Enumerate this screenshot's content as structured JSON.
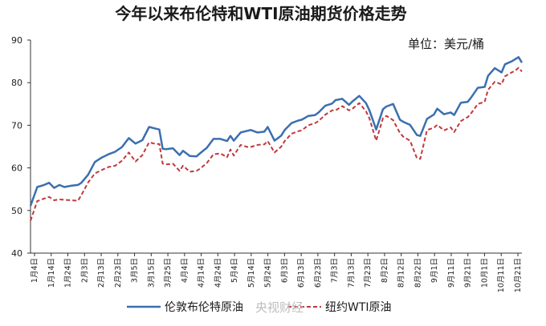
{
  "chart_data": {
    "type": "line",
    "title": "今年以来布伦特和WTI原油期货价格走势",
    "unit_label": "单位：美元/桶",
    "ylim": [
      40,
      90
    ],
    "yticks": [
      40,
      50,
      60,
      70,
      80,
      90
    ],
    "x_tick_labels": [
      "1月4日",
      "1月14日",
      "1月24日",
      "2月3日",
      "2月13日",
      "2月23日",
      "3月5日",
      "3月15日",
      "3月25日",
      "4月4日",
      "4月14日",
      "4月24日",
      "5月4日",
      "5月14日",
      "5月24日",
      "6月3日",
      "6月13日",
      "6月23日",
      "7月3日",
      "7月13日",
      "7月23日",
      "8月2日",
      "8月12日",
      "8月22日",
      "9月1日",
      "9月11日",
      "9月21日",
      "10月1日",
      "10月11日",
      "10月21日"
    ],
    "x_range": [
      0,
      290
    ],
    "colors": {
      "brent": "#3b6fb0",
      "wti": "#c0393e"
    },
    "series": [
      {
        "name": "伦敦布伦特原油",
        "style": "solid",
        "color": "#3b6fb0",
        "x": [
          0,
          4,
          8,
          11,
          14,
          17,
          20,
          24,
          28,
          30,
          34,
          38,
          42,
          46,
          50,
          54,
          58,
          62,
          66,
          70,
          74,
          76,
          78,
          80,
          84,
          88,
          90,
          94,
          98,
          100,
          104,
          108,
          112,
          116,
          118,
          120,
          124,
          128,
          130,
          134,
          138,
          140,
          144,
          148,
          150,
          154,
          158,
          160,
          164,
          168,
          170,
          174,
          178,
          180,
          184,
          188,
          190,
          194,
          198,
          200,
          204,
          208,
          210,
          214,
          218,
          220,
          224,
          228,
          230,
          234,
          238,
          240,
          244,
          248,
          250,
          254,
          258,
          260,
          264,
          268,
          270,
          274,
          278,
          280,
          284,
          286,
          288,
          290
        ],
        "values": [
          51.1,
          55.5,
          56.0,
          56.5,
          55.3,
          56.0,
          55.5,
          55.8,
          56.0,
          56.5,
          58.4,
          61.4,
          62.4,
          63.2,
          63.8,
          64.9,
          67.0,
          65.7,
          66.5,
          69.6,
          69.2,
          69.0,
          64.5,
          64.4,
          64.6,
          63.0,
          64.0,
          62.8,
          62.7,
          63.4,
          64.7,
          66.8,
          66.8,
          66.3,
          67.5,
          66.4,
          68.3,
          68.7,
          68.9,
          68.3,
          68.5,
          69.6,
          66.4,
          67.6,
          68.9,
          70.5,
          71.1,
          71.3,
          72.2,
          72.4,
          73.0,
          74.6,
          75.1,
          75.9,
          76.2,
          74.8,
          75.6,
          76.9,
          75.2,
          73.5,
          69.0,
          73.8,
          74.4,
          75.0,
          71.3,
          70.8,
          70.1,
          67.7,
          67.5,
          71.5,
          72.5,
          73.9,
          72.6,
          73.0,
          72.4,
          75.3,
          75.5,
          76.5,
          78.8,
          79.0,
          81.6,
          83.4,
          82.4,
          84.3,
          85.0,
          85.5,
          86.0,
          84.7
        ]
      },
      {
        "name": "纽约WTI原油",
        "style": "dashed",
        "color": "#c0393e",
        "x": [
          0,
          4,
          8,
          11,
          14,
          17,
          20,
          24,
          28,
          30,
          34,
          38,
          42,
          46,
          50,
          54,
          58,
          62,
          66,
          70,
          74,
          76,
          78,
          80,
          84,
          88,
          90,
          94,
          98,
          100,
          104,
          108,
          112,
          116,
          118,
          120,
          124,
          128,
          130,
          134,
          138,
          140,
          144,
          148,
          150,
          154,
          158,
          160,
          164,
          168,
          170,
          174,
          178,
          180,
          184,
          188,
          190,
          194,
          198,
          200,
          204,
          208,
          210,
          214,
          218,
          220,
          224,
          228,
          230,
          234,
          238,
          240,
          244,
          248,
          250,
          254,
          258,
          260,
          264,
          268,
          270,
          274,
          278,
          280,
          284,
          286,
          288,
          290
        ],
        "values": [
          47.6,
          52.2,
          52.8,
          53.2,
          52.4,
          52.6,
          52.5,
          52.4,
          52.3,
          53.6,
          56.6,
          58.7,
          59.5,
          60.2,
          60.5,
          61.7,
          63.6,
          61.5,
          63.0,
          66.0,
          65.6,
          65.6,
          61.0,
          60.8,
          61.0,
          59.3,
          60.5,
          59.1,
          59.3,
          59.8,
          61.1,
          63.2,
          63.4,
          62.5,
          64.3,
          62.9,
          65.4,
          64.9,
          64.9,
          65.4,
          65.5,
          66.3,
          63.6,
          65.0,
          66.3,
          68.0,
          68.6,
          68.8,
          70.0,
          70.5,
          71.0,
          72.5,
          73.5,
          73.5,
          74.5,
          73.5,
          73.9,
          75.2,
          73.3,
          71.6,
          66.4,
          71.7,
          72.2,
          71.2,
          68.2,
          67.3,
          66.4,
          62.3,
          62.1,
          68.9,
          69.4,
          70.1,
          68.8,
          69.5,
          68.4,
          71.0,
          71.9,
          72.8,
          75.0,
          75.5,
          78.3,
          80.2,
          79.6,
          81.5,
          82.4,
          82.8,
          83.5,
          82.6
        ]
      }
    ],
    "legend": {
      "position": "bottom",
      "items": [
        "伦敦布伦特原油",
        "纽约WTI原油"
      ]
    },
    "watermark": "央视财经",
    "grid": false
  }
}
